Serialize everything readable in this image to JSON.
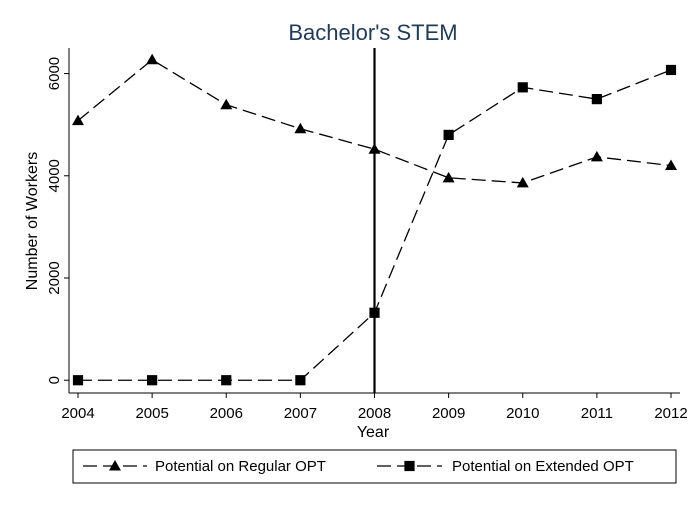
{
  "chart_data": {
    "type": "line",
    "title": "Bachelor's STEM",
    "xlabel": "Year",
    "ylabel": "Number of Workers",
    "x": [
      2004,
      2005,
      2006,
      2007,
      2008,
      2009,
      2010,
      2011,
      2012
    ],
    "xticks": [
      "2004",
      "2005",
      "2006",
      "2007",
      "2008",
      "2009",
      "2010",
      "2011",
      "2012"
    ],
    "yticks": [
      "0",
      "2000",
      "4000",
      "6000"
    ],
    "ylim": [
      -250,
      6500
    ],
    "grid": false,
    "vertical_line_at": 2008,
    "legend_position": "bottom",
    "series": [
      {
        "name": "Potential on Regular OPT",
        "marker": "triangle",
        "line_style": "dashed",
        "color": "#000000",
        "values": [
          5080,
          6270,
          5390,
          4920,
          4520,
          3960,
          3860,
          4370,
          4200
        ]
      },
      {
        "name": "Potential on Extended OPT",
        "marker": "square",
        "line_style": "dashed",
        "color": "#000000",
        "values": [
          0,
          0,
          0,
          0,
          1320,
          4800,
          5730,
          5500,
          6070
        ]
      }
    ]
  }
}
